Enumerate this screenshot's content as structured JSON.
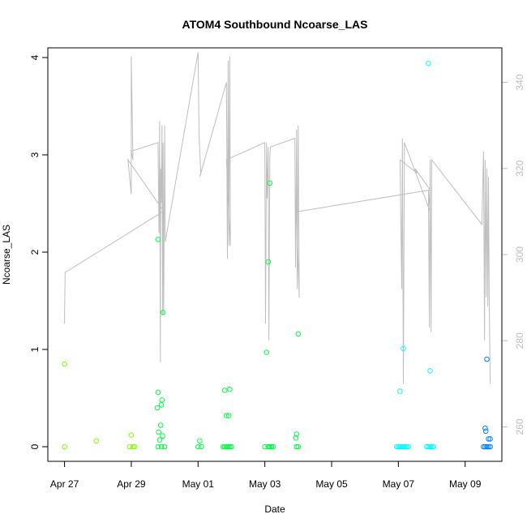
{
  "chart_data": {
    "type": "scatter",
    "title": "ATOM4 Southbound Ncoarse_LAS",
    "xlabel": "Date",
    "ylabel": "Ncoarse_LAS",
    "ylabel_right": "",
    "x_ticks": [
      "Apr 27",
      "Apr 29",
      "May 01",
      "May 03",
      "May 05",
      "May 07",
      "May 09"
    ],
    "x_tick_days": [
      0,
      2,
      4,
      6,
      8,
      10,
      12
    ],
    "xlim_days": [
      -0.5,
      13.1
    ],
    "ylim": [
      -0.15,
      4.1
    ],
    "y_ticks": [
      0,
      1,
      2,
      3,
      4
    ],
    "y2lim": [
      252,
      348
    ],
    "y2_ticks": [
      260,
      280,
      300,
      320,
      340
    ],
    "grid": false,
    "legend": "none",
    "point_colors": {
      "early": "#80ff00",
      "mid": "#00ff40",
      "late": "#00ffff",
      "end": "#0080ff"
    },
    "line_color": "#bebebe",
    "series": [
      {
        "kind": "points",
        "points": [
          [
            0.0,
            0.85
          ],
          [
            0.0,
            0.0
          ],
          [
            0.95,
            0.06
          ],
          [
            2.0,
            0.12
          ],
          [
            1.95,
            0.0
          ],
          [
            2.05,
            0.0
          ],
          [
            2.1,
            0.0
          ],
          [
            2.8,
            2.13
          ],
          [
            2.8,
            0.56
          ],
          [
            2.78,
            0.4
          ],
          [
            2.82,
            0.15
          ],
          [
            2.85,
            0.07
          ],
          [
            2.88,
            0.22
          ],
          [
            2.9,
            0.43
          ],
          [
            2.92,
            0.48
          ],
          [
            2.94,
            0.11
          ],
          [
            2.95,
            1.38
          ],
          [
            2.8,
            0.0
          ],
          [
            2.9,
            0.0
          ],
          [
            3.0,
            0.0
          ],
          [
            4.05,
            0.06
          ],
          [
            4.0,
            0.0
          ],
          [
            4.1,
            0.0
          ],
          [
            4.8,
            0.58
          ],
          [
            4.95,
            0.59
          ],
          [
            4.85,
            0.32
          ],
          [
            4.92,
            0.32
          ],
          [
            4.75,
            0.0
          ],
          [
            4.8,
            0.0
          ],
          [
            4.85,
            0.0
          ],
          [
            4.9,
            0.0
          ],
          [
            4.95,
            0.0
          ],
          [
            5.0,
            0.0
          ],
          [
            6.05,
            0.97
          ],
          [
            6.1,
            1.9
          ],
          [
            6.15,
            2.71
          ],
          [
            6.0,
            0.0
          ],
          [
            6.1,
            0.0
          ],
          [
            6.15,
            0.0
          ],
          [
            6.2,
            0.0
          ],
          [
            6.25,
            0.0
          ],
          [
            6.95,
            0.13
          ],
          [
            6.93,
            0.09
          ],
          [
            7.0,
            1.16
          ],
          [
            6.95,
            0.0
          ],
          [
            7.0,
            0.0
          ],
          [
            9.95,
            0.0
          ],
          [
            10.0,
            0.0
          ],
          [
            10.05,
            0.0
          ],
          [
            10.1,
            0.0
          ],
          [
            10.15,
            0.0
          ],
          [
            10.2,
            0.0
          ],
          [
            10.25,
            0.0
          ],
          [
            10.3,
            0.0
          ],
          [
            10.05,
            0.57
          ],
          [
            10.15,
            1.01
          ],
          [
            10.9,
            3.94
          ],
          [
            10.95,
            0.78
          ],
          [
            10.85,
            0.0
          ],
          [
            10.9,
            0.0
          ],
          [
            10.95,
            0.0
          ],
          [
            11.0,
            0.0
          ],
          [
            11.05,
            0.0
          ],
          [
            12.6,
            0.19
          ],
          [
            12.62,
            0.16
          ],
          [
            12.65,
            0.9
          ],
          [
            12.7,
            0.08
          ],
          [
            12.75,
            0.08
          ],
          [
            12.55,
            0.0
          ],
          [
            12.6,
            0.0
          ],
          [
            12.65,
            0.0
          ],
          [
            12.7,
            0.0
          ],
          [
            12.75,
            0.0
          ]
        ]
      },
      {
        "kind": "line",
        "axis": "right",
        "points": [
          [
            0.0,
            284
          ],
          [
            0.0,
            286
          ],
          [
            0.02,
            296
          ],
          [
            0.05,
            296
          ],
          [
            2.95,
            310
          ],
          [
            2.95,
            307
          ],
          [
            2.98,
            310
          ],
          [
            1.9,
            322
          ],
          [
            2.0,
            314
          ],
          [
            2.0,
            346
          ],
          [
            2.05,
            322
          ],
          [
            2.0,
            324
          ],
          [
            2.8,
            326
          ],
          [
            2.83,
            305
          ],
          [
            2.85,
            331
          ],
          [
            2.87,
            275
          ],
          [
            2.88,
            320
          ],
          [
            2.9,
            312
          ],
          [
            2.92,
            330
          ],
          [
            2.94,
            286
          ],
          [
            2.95,
            326
          ],
          [
            2.97,
            286
          ],
          [
            3.0,
            330
          ],
          [
            3.02,
            303
          ],
          [
            4.0,
            347
          ],
          [
            4.03,
            328
          ],
          [
            4.08,
            319
          ],
          [
            4.05,
            318
          ],
          [
            4.85,
            340
          ],
          [
            4.88,
            299
          ],
          [
            4.9,
            345
          ],
          [
            4.92,
            302
          ],
          [
            4.95,
            346
          ],
          [
            4.97,
            302
          ],
          [
            4.85,
            322
          ],
          [
            6.0,
            326
          ],
          [
            6.02,
            284
          ],
          [
            6.05,
            326
          ],
          [
            6.07,
            313
          ],
          [
            6.1,
            325
          ],
          [
            6.12,
            280
          ],
          [
            6.15,
            323
          ],
          [
            6.17,
            325
          ],
          [
            6.9,
            327
          ],
          [
            6.92,
            297
          ],
          [
            6.95,
            329
          ],
          [
            6.97,
            292
          ],
          [
            7.0,
            330
          ],
          [
            7.03,
            290
          ],
          [
            6.95,
            309
          ],
          [
            6.95,
            312
          ],
          [
            7.0,
            310
          ],
          [
            10.95,
            315
          ],
          [
            10.5,
            320
          ],
          [
            10.55,
            319
          ],
          [
            10.05,
            322
          ],
          [
            10.1,
            292
          ],
          [
            10.12,
            327
          ],
          [
            10.15,
            270
          ],
          [
            10.18,
            326
          ],
          [
            10.95,
            310
          ],
          [
            10.9,
            315
          ],
          [
            10.93,
            283
          ],
          [
            10.95,
            322
          ],
          [
            10.98,
            282
          ],
          [
            11.0,
            322
          ],
          [
            12.5,
            307
          ],
          [
            12.55,
            324
          ],
          [
            12.58,
            280
          ],
          [
            12.6,
            322
          ],
          [
            12.63,
            290
          ],
          [
            12.65,
            320
          ],
          [
            12.68,
            288
          ],
          [
            12.7,
            318
          ],
          [
            12.72,
            290
          ],
          [
            12.75,
            270
          ]
        ]
      }
    ]
  }
}
